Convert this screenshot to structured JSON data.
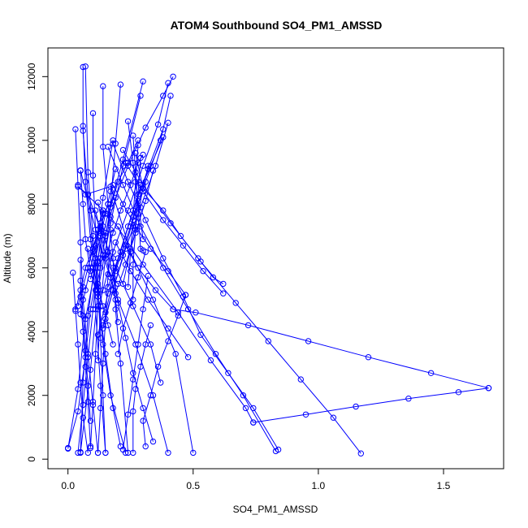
{
  "chart_data": {
    "type": "line",
    "title": "ATOM4 Southbound SO4_PM1_AMSSD",
    "xlabel": "SO4_PM1_AMSSD",
    "ylabel": "Altitude (m)",
    "xlim": [
      -0.08,
      1.74
    ],
    "ylim": [
      -300,
      12900
    ],
    "xticks": [
      0.0,
      0.5,
      1.0,
      1.5
    ],
    "xtick_labels": [
      "0.0",
      "0.5",
      "1.0",
      "1.5"
    ],
    "yticks": [
      0,
      2000,
      4000,
      6000,
      8000,
      10000,
      12000
    ],
    "ytick_labels": [
      "0",
      "2000",
      "4000",
      "6000",
      "8000",
      "10000",
      "12000"
    ],
    "marker": "open-circle",
    "grid": false,
    "series_color": "#0000ff",
    "series": [
      {
        "x": [
          0.0,
          0.04,
          0.07,
          0.09,
          0.12,
          0.15,
          0.19,
          0.24,
          0.31,
          0.38,
          0.42
        ],
        "y": [
          350,
          1500,
          3200,
          4700,
          6000,
          7100,
          8200,
          9200,
          10400,
          11400,
          12000
        ]
      },
      {
        "x": [
          0.06,
          0.06,
          0.08,
          0.1,
          0.11,
          0.13,
          0.15
        ],
        "y": [
          12300,
          10300,
          8300,
          6500,
          4700,
          2300,
          200
        ]
      },
      {
        "x": [
          0.07,
          0.08,
          0.1,
          0.12,
          0.14,
          0.17,
          0.23
        ],
        "y": [
          12320,
          9000,
          7000,
          5200,
          3600,
          2000,
          200
        ]
      },
      {
        "x": [
          0.0,
          0.04,
          0.07,
          0.11,
          0.16,
          0.22,
          0.3
        ],
        "y": [
          330,
          2200,
          4400,
          6000,
          7700,
          9400,
          11850
        ]
      },
      {
        "x": [
          0.05,
          0.06,
          0.08,
          0.11,
          0.14,
          0.18
        ],
        "y": [
          200,
          2400,
          4500,
          6300,
          8200,
          10000
        ]
      },
      {
        "x": [
          0.05,
          0.09,
          0.12,
          0.17,
          0.22,
          0.29
        ],
        "y": [
          220,
          2800,
          5300,
          7400,
          9200,
          11400
        ]
      },
      {
        "x": [
          0.03,
          0.04,
          0.05,
          0.06,
          0.08,
          0.1,
          0.12
        ],
        "y": [
          10350,
          8600,
          6800,
          5000,
          3300,
          1700,
          200
        ]
      },
      {
        "x": [
          0.06,
          0.07,
          0.09,
          0.12,
          0.15,
          0.18,
          0.21
        ],
        "y": [
          10450,
          8700,
          6900,
          5100,
          3300,
          1600,
          400
        ]
      },
      {
        "x": [
          0.1,
          0.1,
          0.11,
          0.12,
          0.13,
          0.14,
          0.15
        ],
        "y": [
          10850,
          8900,
          7200,
          5500,
          3800,
          2000,
          200
        ]
      },
      {
        "x": [
          0.14,
          0.14,
          0.16,
          0.18,
          0.19,
          0.21,
          0.24
        ],
        "y": [
          11700,
          9800,
          8000,
          6300,
          4700,
          3000,
          200
        ]
      },
      {
        "x": [
          0.21,
          0.19,
          0.17,
          0.15,
          0.13,
          0.12
        ],
        "y": [
          11750,
          9900,
          8000,
          6400,
          4800,
          3100
        ]
      },
      {
        "x": [
          0.05,
          0.06,
          0.07,
          0.09,
          0.11,
          0.13,
          0.15,
          0.17,
          0.2,
          0.24,
          0.28
        ],
        "y": [
          9050,
          8000,
          6900,
          5900,
          5300,
          6000,
          7000,
          7900,
          8700,
          9300,
          10000
        ]
      },
      {
        "x": [
          0.05,
          0.09,
          0.14,
          0.2,
          0.27,
          0.34,
          0.4
        ],
        "y": [
          9060,
          7800,
          6400,
          5000,
          3600,
          2000,
          200
        ]
      },
      {
        "x": [
          0.04,
          0.08,
          0.13,
          0.19,
          0.26,
          0.33,
          0.37
        ],
        "y": [
          8550,
          8300,
          7200,
          6000,
          4800,
          3600,
          2400
        ]
      },
      {
        "x": [
          0.07,
          0.17,
          0.25,
          0.34,
          0.43,
          0.5
        ],
        "y": [
          8300,
          8550,
          6500,
          5000,
          3300,
          200
        ]
      },
      {
        "x": [
          0.4,
          0.36,
          0.3,
          0.24,
          0.18,
          0.14,
          0.12
        ],
        "y": [
          11800,
          10500,
          9200,
          7800,
          6500,
          5300,
          4700
        ]
      },
      {
        "x": [
          0.41,
          0.37,
          0.31,
          0.25,
          0.19,
          0.15
        ],
        "y": [
          11400,
          10000,
          8700,
          7300,
          5900,
          4600
        ]
      },
      {
        "x": [
          0.4,
          0.35,
          0.29,
          0.23,
          0.18,
          0.14
        ],
        "y": [
          10550,
          9200,
          7900,
          6600,
          5300,
          4100
        ]
      },
      {
        "x": [
          0.38,
          0.32,
          0.26,
          0.21,
          0.16,
          0.12
        ],
        "y": [
          10350,
          9100,
          7800,
          6500,
          5200,
          3900
        ]
      },
      {
        "x": [
          0.27,
          0.3,
          0.38,
          0.45,
          0.52,
          0.58,
          0.62
        ],
        "y": [
          9600,
          8500,
          7800,
          7000,
          6300,
          5700,
          5500
        ]
      },
      {
        "x": [
          0.23,
          0.3,
          0.38,
          0.46,
          0.54,
          0.62
        ],
        "y": [
          9300,
          8400,
          7500,
          6700,
          5900,
          5200
        ]
      },
      {
        "x": [
          0.18,
          0.24,
          0.31,
          0.38,
          0.46,
          0.53,
          0.64,
          0.74,
          0.84
        ],
        "y": [
          9900,
          8700,
          7500,
          6300,
          5100,
          3900,
          2700,
          1600,
          300
        ]
      },
      {
        "x": [
          0.16,
          0.22,
          0.29,
          0.38,
          0.48,
          0.59,
          0.7,
          0.83
        ],
        "y": [
          9800,
          8600,
          7300,
          6000,
          4700,
          3300,
          2000,
          250
        ]
      },
      {
        "x": [
          0.22,
          0.3,
          0.41,
          0.53,
          0.67,
          0.8,
          0.93,
          1.06,
          1.17
        ],
        "y": [
          9700,
          8600,
          7400,
          6200,
          4900,
          3700,
          2500,
          1300,
          180
        ]
      },
      {
        "x": [
          0.04,
          0.17,
          0.3,
          0.44,
          0.57,
          0.71,
          0.74
        ],
        "y": [
          8550,
          7600,
          6100,
          4600,
          3100,
          1600,
          1150
        ]
      },
      {
        "x": [
          0.74,
          0.95,
          1.15,
          1.36,
          1.56,
          1.68
        ],
        "y": [
          1150,
          1400,
          1650,
          1900,
          2100,
          2230
        ]
      },
      {
        "x": [
          1.68,
          1.45,
          1.2,
          0.96,
          0.72,
          0.51,
          0.42
        ],
        "y": [
          2230,
          2700,
          3200,
          3700,
          4200,
          4600,
          4700
        ]
      },
      {
        "x": [
          0.42,
          0.35,
          0.28,
          0.23,
          0.2
        ],
        "y": [
          4700,
          5300,
          6000,
          6700,
          7300
        ]
      },
      {
        "x": [
          0.47,
          0.4,
          0.33,
          0.27,
          0.22,
          0.18
        ],
        "y": [
          5150,
          5900,
          6600,
          7300,
          8000,
          8600
        ]
      },
      {
        "x": [
          0.48,
          0.4,
          0.32,
          0.25,
          0.19
        ],
        "y": [
          3200,
          4100,
          5000,
          5900,
          6800
        ]
      },
      {
        "x": [
          0.47,
          0.44,
          0.4,
          0.36,
          0.33,
          0.3,
          0.31
        ],
        "y": [
          5150,
          4500,
          3700,
          2900,
          2000,
          1200,
          400
        ]
      },
      {
        "x": [
          0.33,
          0.31,
          0.29,
          0.27,
          0.26,
          0.26
        ],
        "y": [
          4200,
          3600,
          2900,
          2200,
          1500,
          200
        ]
      },
      {
        "x": [
          0.34,
          0.3,
          0.26,
          0.23,
          0.2,
          0.18
        ],
        "y": [
          550,
          1600,
          2700,
          3800,
          4900,
          6000
        ]
      },
      {
        "x": [
          0.32,
          0.3,
          0.28,
          0.26,
          0.24,
          0.22
        ],
        "y": [
          5750,
          4700,
          3600,
          2500,
          1400,
          300
        ]
      },
      {
        "x": [
          0.31,
          0.28,
          0.25,
          0.22,
          0.2
        ],
        "y": [
          6500,
          5700,
          4900,
          4100,
          3300
        ]
      },
      {
        "x": [
          0.02,
          0.03,
          0.04,
          0.05,
          0.06,
          0.08
        ],
        "y": [
          5850,
          4700,
          3600,
          2400,
          1300,
          200
        ]
      },
      {
        "x": [
          0.05,
          0.05,
          0.06,
          0.07,
          0.08,
          0.09
        ],
        "y": [
          6250,
          5100,
          4000,
          2900,
          1800,
          400
        ]
      },
      {
        "x": [
          0.05,
          0.06,
          0.07,
          0.08,
          0.09
        ],
        "y": [
          5600,
          4500,
          3400,
          2300,
          1200
        ]
      },
      {
        "x": [
          0.04,
          0.06,
          0.08,
          0.1,
          0.12,
          0.14
        ],
        "y": [
          4800,
          5400,
          6000,
          6600,
          7200,
          7800
        ]
      },
      {
        "x": [
          0.05,
          0.07,
          0.09,
          0.11,
          0.13
        ],
        "y": [
          4550,
          5300,
          6000,
          6700,
          7400
        ]
      },
      {
        "x": [
          0.03,
          0.05,
          0.07,
          0.1,
          0.13,
          0.16
        ],
        "y": [
          4650,
          5300,
          6000,
          6600,
          7300,
          8000
        ]
      },
      {
        "x": [
          0.08,
          0.1,
          0.12,
          0.14,
          0.16,
          0.18
        ],
        "y": [
          6600,
          6000,
          5400,
          4800,
          4200,
          3600
        ]
      },
      {
        "x": [
          0.11,
          0.13,
          0.15,
          0.17,
          0.19,
          0.2
        ],
        "y": [
          7800,
          7100,
          6400,
          5700,
          5000,
          4300
        ]
      },
      {
        "x": [
          0.12,
          0.14,
          0.16,
          0.18,
          0.2
        ],
        "y": [
          8050,
          7300,
          6500,
          5700,
          5500
        ]
      },
      {
        "x": [
          0.09,
          0.11,
          0.13,
          0.15,
          0.17,
          0.19
        ],
        "y": [
          5650,
          6300,
          7000,
          7700,
          8400,
          9100
        ]
      },
      {
        "x": [
          0.15,
          0.18,
          0.21,
          0.25,
          0.28,
          0.3
        ],
        "y": [
          6300,
          7100,
          7800,
          8600,
          9300,
          9550
        ]
      },
      {
        "x": [
          0.16,
          0.2,
          0.24,
          0.28,
          0.33,
          0.38
        ],
        "y": [
          5400,
          6300,
          7300,
          8300,
          9200,
          10100
        ]
      },
      {
        "x": [
          0.19,
          0.23,
          0.27,
          0.31,
          0.34
        ],
        "y": [
          5200,
          6100,
          7100,
          8100,
          9050
        ]
      },
      {
        "x": [
          0.22,
          0.25,
          0.28,
          0.3,
          0.32
        ],
        "y": [
          5500,
          6600,
          7700,
          8500,
          9200
        ]
      },
      {
        "x": [
          0.24,
          0.26,
          0.28,
          0.3
        ],
        "y": [
          10600,
          9300,
          8100,
          6900
        ]
      },
      {
        "x": [
          0.26,
          0.27,
          0.28,
          0.29,
          0.3
        ],
        "y": [
          10150,
          9000,
          7900,
          6600,
          6550
        ]
      },
      {
        "x": [
          0.28,
          0.27,
          0.26,
          0.25,
          0.24
        ],
        "y": [
          9850,
          8700,
          7600,
          6500,
          5400
        ]
      },
      {
        "x": [
          0.29,
          0.28,
          0.27,
          0.26,
          0.26
        ],
        "y": [
          9450,
          8300,
          7200,
          6100,
          5000
        ]
      },
      {
        "x": [
          0.14,
          0.18,
          0.22,
          0.26,
          0.29
        ],
        "y": [
          4200,
          5300,
          6400,
          7500,
          8600
        ]
      },
      {
        "x": [
          0.09,
          0.1,
          0.11,
          0.12,
          0.13,
          0.14
        ],
        "y": [
          350,
          1800,
          3300,
          4800,
          6300,
          7800
        ]
      },
      {
        "x": [
          0.04,
          0.06,
          0.08,
          0.1,
          0.12,
          0.14
        ],
        "y": [
          200,
          1700,
          3200,
          4700,
          6200,
          7700
        ]
      },
      {
        "x": [
          0.12,
          0.13,
          0.14,
          0.15,
          0.16,
          0.17
        ],
        "y": [
          200,
          1600,
          3000,
          4400,
          5800,
          7200
        ]
      }
    ]
  }
}
